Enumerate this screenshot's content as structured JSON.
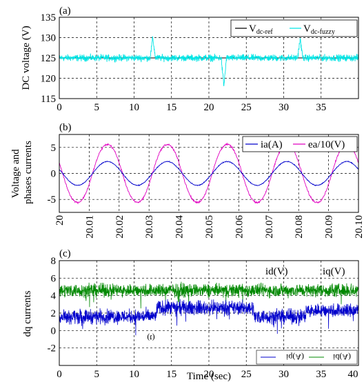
{
  "chart_data": [
    {
      "panel_label": "(a)",
      "type": "line",
      "ylabel": "DC voltage (V)",
      "xlabel": "",
      "xlim": [
        0,
        40
      ],
      "ylim": [
        115,
        135
      ],
      "x_ticks": [
        "0",
        "5",
        "10",
        "15",
        "20",
        "25",
        "30",
        "35"
      ],
      "y_ticks": [
        "115",
        "120",
        "125",
        "130",
        "135"
      ],
      "grid": true,
      "legend_position": "top-right",
      "series": [
        {
          "name": "V",
          "name_sub": "dc-ref",
          "color": "#000000",
          "constant": 125
        },
        {
          "name": "V",
          "name_sub": "dc-fuzzy",
          "color": "#00e5e5",
          "mean": 125,
          "ripple": 1.2,
          "spikes": [
            {
              "x": 12.5,
              "peak": 130
            },
            {
              "x": 22,
              "peak": 118
            },
            {
              "x": 32.2,
              "peak": 129.6
            }
          ]
        }
      ]
    },
    {
      "panel_label": "(b)",
      "type": "line",
      "ylabel": "Voltage and phases currents",
      "xlabel": "",
      "xlim": [
        20,
        20.1
      ],
      "ylim": [
        -7.5,
        7.5
      ],
      "x_ticks": [
        "20",
        "20.01",
        "20.02",
        "20.03",
        "20.04",
        "20.05",
        "20.06",
        "20.07",
        "20.08",
        "20.09",
        "20.10"
      ],
      "y_ticks": [
        "-5",
        "0",
        "5"
      ],
      "grid": true,
      "legend_position": "top-right",
      "series": [
        {
          "name": "ia(A)",
          "color": "#0000cc",
          "amplitude": 2.3,
          "frequency_hz": 50,
          "phase_deg": 160
        },
        {
          "name": "ea/10(V)",
          "color": "#e000c0",
          "amplitude": 5.7,
          "frequency_hz": 50,
          "phase_deg": 160
        }
      ]
    },
    {
      "panel_label": "(c)",
      "type": "line",
      "ylabel": "dq currents",
      "xlabel": "Time (sec)",
      "xlim": [
        0,
        40
      ],
      "ylim": [
        -4,
        8
      ],
      "x_ticks": [
        "0",
        "5",
        "10",
        "15",
        "20",
        "25",
        "30",
        "35",
        "40"
      ],
      "y_ticks": [
        "-2",
        "0",
        "2",
        "4",
        "6",
        "8"
      ],
      "grid": true,
      "series": [
        {
          "name": "id(V)",
          "color": "#0000cc",
          "segments": [
            {
              "x": [
                0,
                13
              ],
              "mean": 1.6
            },
            {
              "x": [
                13,
                26
              ],
              "mean": 2.6
            },
            {
              "x": [
                26,
                33
              ],
              "mean": 1.6
            },
            {
              "x": [
                33,
                40
              ],
              "mean": 2.3
            }
          ]
        },
        {
          "name": "iq(V)",
          "color": "#008800",
          "segments": [
            {
              "x": [
                0,
                40
              ],
              "mean": 4.6
            }
          ]
        }
      ],
      "annotations": {
        "id_label": "id(V)",
        "iq_label": "iq(V)",
        "mirrored_legend": [
          "iq(A)",
          "id(A)"
        ],
        "mirrored_mark": "(t)"
      }
    }
  ]
}
